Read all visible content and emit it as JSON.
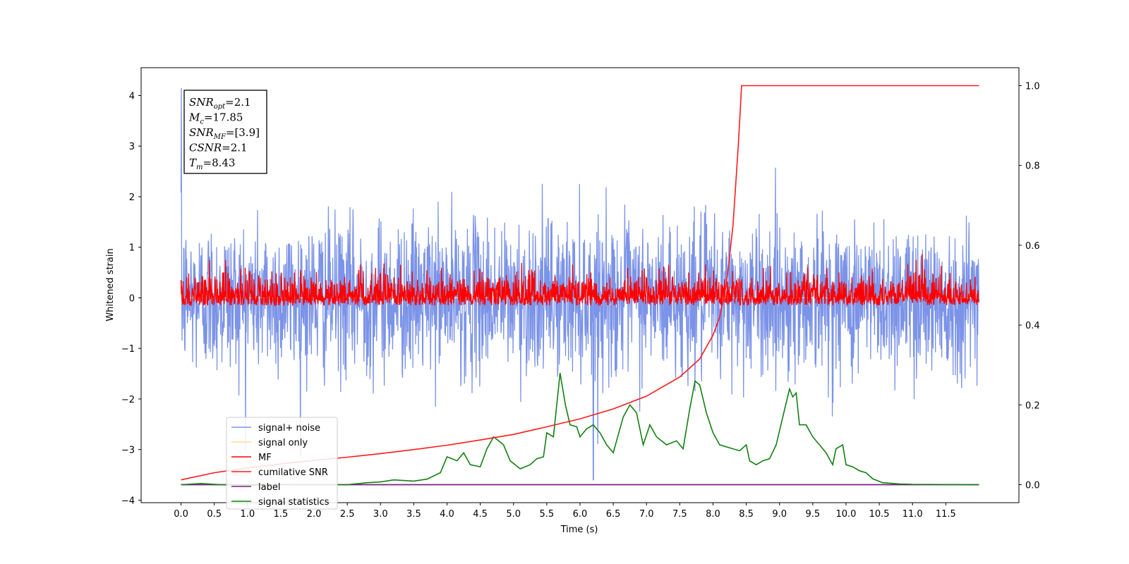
{
  "chart_data": {
    "type": "line",
    "title": "",
    "xlabel": "Time (s)",
    "ylabel": "Whitened strain",
    "xlim": [
      -0.6,
      12.6
    ],
    "ylim": [
      -4.05,
      4.55
    ],
    "y2lim": [
      -0.045,
      1.045
    ],
    "xticks": [
      "0.0",
      "0.5",
      "1.0",
      "1.5",
      "2.0",
      "2.5",
      "3.0",
      "3.5",
      "4.0",
      "4.5",
      "5.0",
      "5.5",
      "6.0",
      "6.5",
      "7.0",
      "7.5",
      "8.0",
      "8.5",
      "9.0",
      "9.5",
      "10.0",
      "10.5",
      "11.0",
      "11.5"
    ],
    "yticks": [
      "4",
      "3",
      "2",
      "1",
      "0",
      "−1",
      "−2",
      "−3",
      "−4"
    ],
    "y2ticks": [
      "1.0",
      "0.8",
      "0.6",
      "0.4",
      "0.2",
      "0.0"
    ],
    "grid": false,
    "legend_position": "lower-left",
    "legend": [
      "signal+ noise",
      "signal only",
      "MF",
      "cumilative SNR",
      "label",
      "signal statistics"
    ],
    "colors": {
      "signal_noise": "#7b93e8",
      "signal_only": "#ffd98a",
      "mf": "#ff0000",
      "cumulative": "#ff1a1a",
      "label": "#7b1f7b",
      "statistics": "#128012"
    },
    "annotation": [
      {
        "base": "SNR",
        "sub": "opt",
        "rest": "=2.1"
      },
      {
        "base": "M",
        "sub": "c",
        "rest": "=17.85"
      },
      {
        "base": "SNR",
        "sub": "MF",
        "rest": "=[3.9]"
      },
      {
        "base": "CSNR",
        "sub": "",
        "rest": "=2.1"
      },
      {
        "base": "T",
        "sub": "m",
        "rest": "=8.43"
      }
    ],
    "series": [
      {
        "name": "signal+ noise",
        "axis": "left",
        "noise_amplitude": 1.0,
        "x_range": [
          0.0,
          12.0
        ]
      },
      {
        "name": "signal only",
        "axis": "left",
        "values_flat": 0.0
      },
      {
        "name": "MF",
        "axis": "left",
        "noise_amplitude": 0.35,
        "x_range": [
          0.0,
          12.0
        ]
      },
      {
        "name": "cumilative SNR",
        "axis": "right",
        "points": [
          [
            0.0,
            0.012
          ],
          [
            0.5,
            0.03
          ],
          [
            1.0,
            0.042
          ],
          [
            1.5,
            0.052
          ],
          [
            2.0,
            0.061
          ],
          [
            2.5,
            0.069
          ],
          [
            3.0,
            0.078
          ],
          [
            3.5,
            0.088
          ],
          [
            4.0,
            0.099
          ],
          [
            4.5,
            0.112
          ],
          [
            5.0,
            0.126
          ],
          [
            5.5,
            0.145
          ],
          [
            6.0,
            0.165
          ],
          [
            6.5,
            0.19
          ],
          [
            7.0,
            0.222
          ],
          [
            7.5,
            0.27
          ],
          [
            7.8,
            0.315
          ],
          [
            8.0,
            0.375
          ],
          [
            8.1,
            0.42
          ],
          [
            8.2,
            0.5
          ],
          [
            8.3,
            0.65
          ],
          [
            8.38,
            0.85
          ],
          [
            8.43,
            1.0
          ],
          [
            12.0,
            1.0
          ]
        ]
      },
      {
        "name": "label",
        "axis": "right",
        "points": [
          [
            0.0,
            0.0
          ],
          [
            12.0,
            0.0
          ]
        ]
      },
      {
        "name": "signal statistics",
        "axis": "right",
        "points": [
          [
            0.0,
            0.0
          ],
          [
            0.3,
            0.003
          ],
          [
            0.6,
            0.0
          ],
          [
            1.0,
            -0.002
          ],
          [
            1.5,
            0.001
          ],
          [
            2.0,
            0.0
          ],
          [
            2.5,
            0.0
          ],
          [
            2.8,
            0.005
          ],
          [
            3.0,
            0.007
          ],
          [
            3.2,
            0.012
          ],
          [
            3.5,
            0.009
          ],
          [
            3.7,
            0.014
          ],
          [
            3.9,
            0.03
          ],
          [
            4.0,
            0.07
          ],
          [
            4.15,
            0.06
          ],
          [
            4.25,
            0.08
          ],
          [
            4.35,
            0.05
          ],
          [
            4.5,
            0.045
          ],
          [
            4.6,
            0.09
          ],
          [
            4.7,
            0.12
          ],
          [
            4.85,
            0.1
          ],
          [
            4.95,
            0.06
          ],
          [
            5.1,
            0.04
          ],
          [
            5.25,
            0.05
          ],
          [
            5.35,
            0.065
          ],
          [
            5.45,
            0.07
          ],
          [
            5.5,
            0.13
          ],
          [
            5.6,
            0.12
          ],
          [
            5.7,
            0.28
          ],
          [
            5.78,
            0.2
          ],
          [
            5.85,
            0.15
          ],
          [
            5.95,
            0.145
          ],
          [
            6.0,
            0.12
          ],
          [
            6.1,
            0.14
          ],
          [
            6.2,
            0.15
          ],
          [
            6.3,
            0.13
          ],
          [
            6.4,
            0.1
          ],
          [
            6.5,
            0.08
          ],
          [
            6.55,
            0.11
          ],
          [
            6.65,
            0.17
          ],
          [
            6.75,
            0.2
          ],
          [
            6.85,
            0.18
          ],
          [
            6.95,
            0.1
          ],
          [
            7.05,
            0.15
          ],
          [
            7.15,
            0.12
          ],
          [
            7.3,
            0.1
          ],
          [
            7.45,
            0.11
          ],
          [
            7.55,
            0.09
          ],
          [
            7.6,
            0.14
          ],
          [
            7.65,
            0.19
          ],
          [
            7.73,
            0.26
          ],
          [
            7.8,
            0.25
          ],
          [
            7.9,
            0.18
          ],
          [
            8.0,
            0.13
          ],
          [
            8.1,
            0.1
          ],
          [
            8.2,
            0.095
          ],
          [
            8.3,
            0.09
          ],
          [
            8.4,
            0.085
          ],
          [
            8.5,
            0.1
          ],
          [
            8.55,
            0.06
          ],
          [
            8.65,
            0.05
          ],
          [
            8.75,
            0.06
          ],
          [
            8.85,
            0.065
          ],
          [
            8.95,
            0.1
          ],
          [
            9.05,
            0.17
          ],
          [
            9.15,
            0.24
          ],
          [
            9.2,
            0.22
          ],
          [
            9.25,
            0.23
          ],
          [
            9.3,
            0.15
          ],
          [
            9.4,
            0.15
          ],
          [
            9.5,
            0.12
          ],
          [
            9.6,
            0.1
          ],
          [
            9.7,
            0.08
          ],
          [
            9.8,
            0.05
          ],
          [
            9.85,
            0.09
          ],
          [
            9.95,
            0.1
          ],
          [
            10.0,
            0.05
          ],
          [
            10.1,
            0.045
          ],
          [
            10.2,
            0.035
          ],
          [
            10.3,
            0.03
          ],
          [
            10.4,
            0.015
          ],
          [
            10.55,
            0.005
          ],
          [
            10.8,
            0.002
          ],
          [
            11.0,
            0.001
          ],
          [
            12.0,
            0.0
          ]
        ]
      }
    ]
  }
}
